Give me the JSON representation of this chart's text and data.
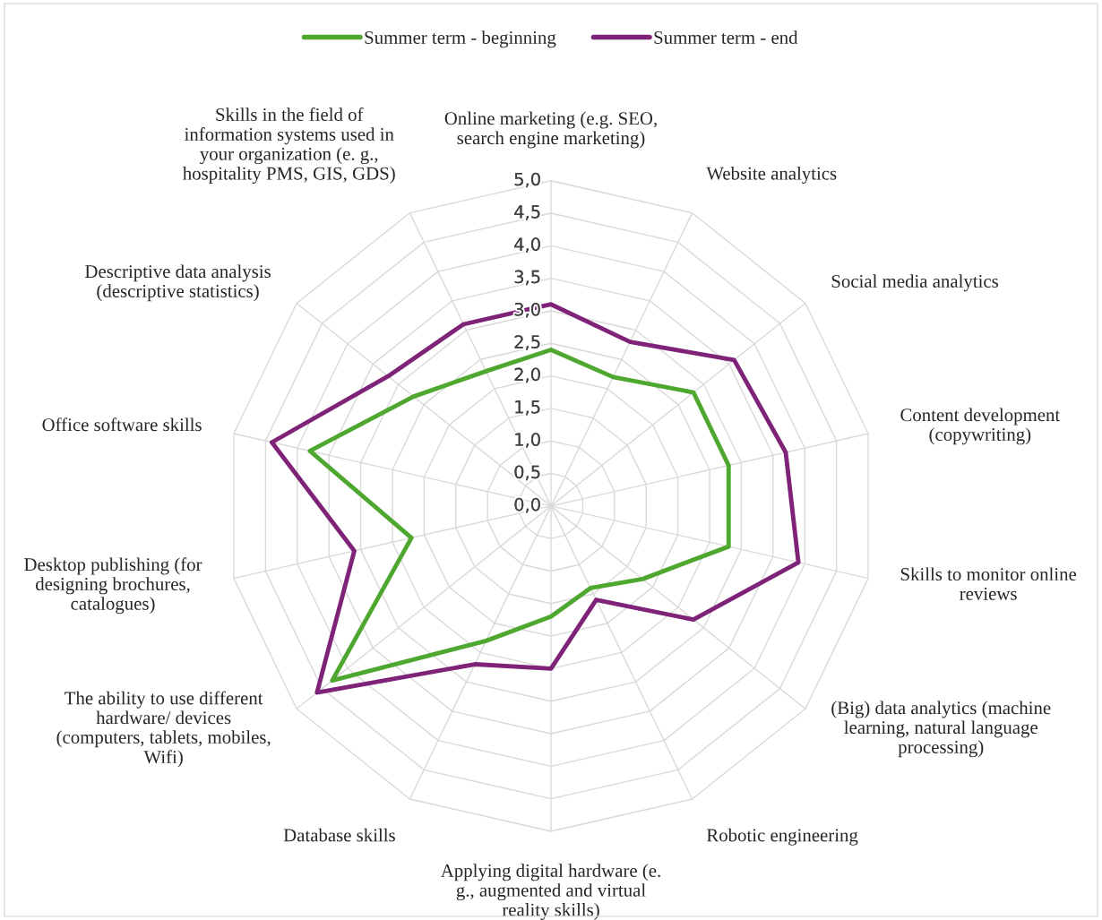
{
  "chart_data": {
    "type": "radar",
    "legend": "top",
    "grid": true,
    "categories": [
      "Online marketing (e.g. SEO,\nsearch engine marketing)",
      "Website analytics",
      "Social media analytics",
      "Content development\n(copywriting)",
      "Skills to monitor online\nreviews",
      "(Big) data analytics (machine\nlearning, natural language\nprocessing)",
      "Robotic engineering",
      "Applying digital hardware (e.\ng., augmented and virtual\nreality skills)",
      "Database skills",
      "The ability to use different\nhardware/ devices\n(computers, tablets, mobiles,\nWifi)",
      "Desktop publishing (for\ndesigning brochures,\ncatalogues)",
      "Office software skills",
      "Descriptive data analysis\n(descriptive statistics)",
      "Skills in the field of\ninformation systems used in\nyour organization (e. g.,\nhospitality PMS, GIS, GDS)"
    ],
    "ylim": [
      0,
      5
    ],
    "yticks": [
      {
        "value": 0,
        "label": "0,0"
      },
      {
        "value": 0.5,
        "label": "0,5"
      },
      {
        "value": 1,
        "label": "1,0"
      },
      {
        "value": 1.5,
        "label": "1,5"
      },
      {
        "value": 2,
        "label": "2,0"
      },
      {
        "value": 2.5,
        "label": "2,5"
      },
      {
        "value": 3,
        "label": "3,0"
      },
      {
        "value": 3.5,
        "label": "3,5"
      },
      {
        "value": 4,
        "label": "4,0"
      },
      {
        "value": 4.5,
        "label": "4,5"
      },
      {
        "value": 5,
        "label": "5,0"
      }
    ],
    "series": [
      {
        "name": "Summer term - beginning",
        "color": "#4ea72e",
        "values": [
          2.4,
          2.2,
          2.8,
          2.8,
          2.8,
          1.8,
          1.4,
          1.7,
          2.3,
          4.3,
          2.2,
          3.8,
          2.7,
          2.3
        ]
      },
      {
        "name": "Summer term - end",
        "color": "#7e2378",
        "values": [
          3.1,
          2.8,
          3.6,
          3.7,
          3.9,
          2.8,
          1.6,
          2.5,
          2.7,
          4.6,
          3.1,
          4.4,
          3.2,
          3.1
        ]
      }
    ]
  }
}
